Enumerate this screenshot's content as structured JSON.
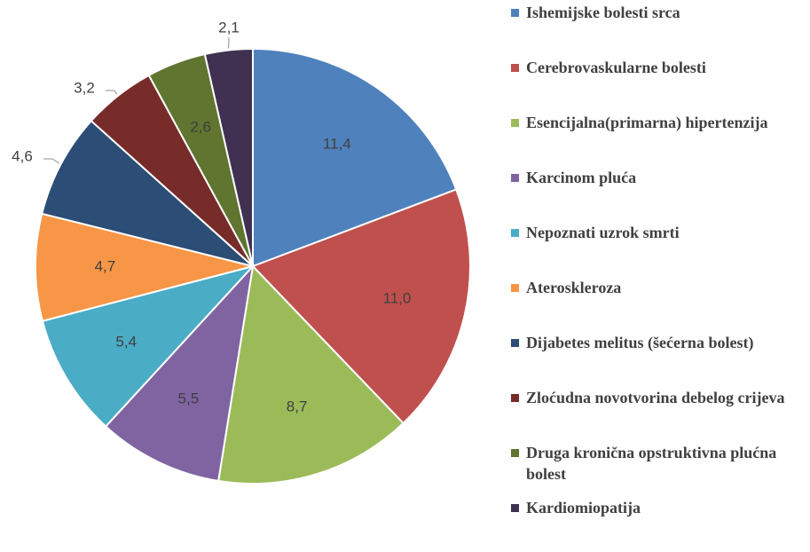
{
  "chart_data": {
    "type": "pie",
    "categories": [
      "Ishemijske bolesti srca",
      "Cerebrovaskularne bolesti",
      "Esencijalna(primarna) hipertenzija",
      "Karcinom pluća",
      "Nepoznati uzrok smrti",
      "Ateroskleroza",
      "Dijabetes melitus (šećerna bolest)",
      "Zloćudna novotvorina debelog crijeva",
      "Druga kronična opstruktivna plućna bolest",
      "Kardiomiopatija"
    ],
    "values": [
      11.4,
      11.0,
      8.7,
      5.5,
      5.4,
      4.7,
      4.6,
      3.2,
      2.6,
      2.1
    ],
    "value_labels": [
      "11,4",
      "11,0",
      "8,7",
      "5,5",
      "5,4",
      "4,7",
      "4,6",
      "3,2",
      "2,6",
      "2,1"
    ],
    "colors": [
      "#4f81bd",
      "#c0504d",
      "#9bbb59",
      "#8064a2",
      "#4bacc6",
      "#f79646",
      "#2c4d75",
      "#772c2a",
      "#5f7530",
      "#403152"
    ],
    "legend": "right"
  }
}
